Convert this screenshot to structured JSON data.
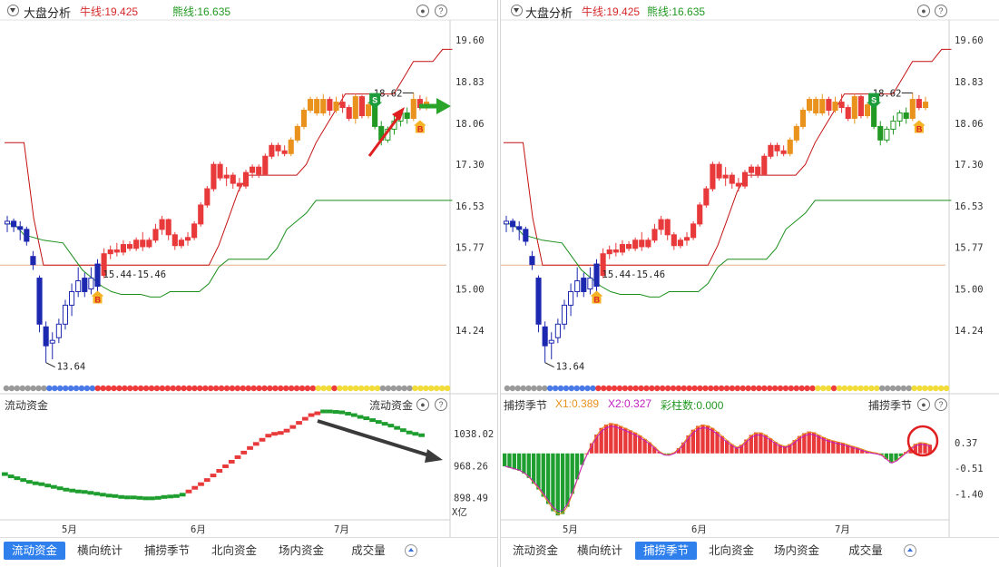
{
  "panels": [
    {
      "header": {
        "title": "大盘分析",
        "bull": "牛线:19.425",
        "bear": "熊线:16.635"
      },
      "sub_label": "流动资金",
      "sub_label_right": "流动资金",
      "tabs": [
        "流动资金",
        "横向统计",
        "捕捞季节",
        "北向资金",
        "场内资金",
        "成交量"
      ],
      "active_tab": 0
    },
    {
      "header": {
        "title": "大盘分析",
        "bull": "牛线:19.425",
        "bear": "熊线:16.635"
      },
      "sub_label": "捕捞季节",
      "sub_label_right": "捕捞季节",
      "indicator_values": {
        "x1": "X1:0.389",
        "x2": "X2:0.327",
        "bars": "彩柱数:0.000"
      },
      "tabs": [
        "流动资金",
        "横向统计",
        "捕捞季节",
        "北向资金",
        "场内资金",
        "成交量"
      ],
      "active_tab": 2
    }
  ],
  "chart_data": [
    {
      "type": "candlestick",
      "y_ticks": [
        "19.60",
        "18.83",
        "18.06",
        "17.30",
        "16.53",
        "15.77",
        "15.00",
        "14.24"
      ],
      "ylim": [
        13.4,
        19.9
      ],
      "x_ticks": [
        "5月",
        "6月",
        "7月"
      ],
      "annotations": {
        "low": "13.64",
        "high": "18.62",
        "band": "15.44-15.46"
      },
      "signals": [
        "B",
        "S",
        "B"
      ],
      "bull_line_last": 19.425,
      "bear_line_last": 16.635,
      "ohlc": [
        [
          16.2,
          16.35,
          16.05,
          16.25
        ],
        [
          16.25,
          16.3,
          16.05,
          16.15
        ],
        [
          16.15,
          16.25,
          15.9,
          16.1
        ],
        [
          16.1,
          16.15,
          15.8,
          15.88
        ],
        [
          15.6,
          15.7,
          15.35,
          15.45
        ],
        [
          15.2,
          15.25,
          14.2,
          14.35
        ],
        [
          14.3,
          14.4,
          13.64,
          13.95
        ],
        [
          14.0,
          14.2,
          13.7,
          14.05
        ],
        [
          14.1,
          14.45,
          14.0,
          14.35
        ],
        [
          14.35,
          14.8,
          14.25,
          14.7
        ],
        [
          14.7,
          15.1,
          14.5,
          14.95
        ],
        [
          14.95,
          15.4,
          14.85,
          15.15
        ],
        [
          15.2,
          15.3,
          14.85,
          14.95
        ],
        [
          15.0,
          15.4,
          14.9,
          15.2
        ],
        [
          15.46,
          15.55,
          14.9,
          15.05
        ],
        [
          15.25,
          15.75,
          15.2,
          15.65
        ],
        [
          15.65,
          15.8,
          15.55,
          15.72
        ],
        [
          15.72,
          15.85,
          15.6,
          15.68
        ],
        [
          15.68,
          15.9,
          15.62,
          15.82
        ],
        [
          15.82,
          15.88,
          15.7,
          15.75
        ],
        [
          15.75,
          15.95,
          15.7,
          15.9
        ],
        [
          15.9,
          16.05,
          15.7,
          15.78
        ],
        [
          15.78,
          15.95,
          15.75,
          15.9
        ],
        [
          15.9,
          16.2,
          15.85,
          16.1
        ],
        [
          16.1,
          16.35,
          16.0,
          16.28
        ],
        [
          16.28,
          16.3,
          15.9,
          16.0
        ],
        [
          16.0,
          16.05,
          15.72,
          15.8
        ],
        [
          15.8,
          15.95,
          15.75,
          15.9
        ],
        [
          15.9,
          16.05,
          15.8,
          15.95
        ],
        [
          15.95,
          16.25,
          15.9,
          16.2
        ],
        [
          16.2,
          16.6,
          16.15,
          16.55
        ],
        [
          16.55,
          16.9,
          16.5,
          16.85
        ],
        [
          16.85,
          17.35,
          16.8,
          17.3
        ],
        [
          17.3,
          17.35,
          17.0,
          17.05
        ],
        [
          17.05,
          17.25,
          16.9,
          17.1
        ],
        [
          17.1,
          17.15,
          16.85,
          16.95
        ],
        [
          16.95,
          17.05,
          16.8,
          16.9
        ],
        [
          16.9,
          17.2,
          16.85,
          17.15
        ],
        [
          17.15,
          17.3,
          17.05,
          17.25
        ],
        [
          17.25,
          17.3,
          17.05,
          17.12
        ],
        [
          17.12,
          17.5,
          17.1,
          17.45
        ],
        [
          17.45,
          17.7,
          17.4,
          17.65
        ],
        [
          17.65,
          17.7,
          17.45,
          17.55
        ],
        [
          17.55,
          17.65,
          17.45,
          17.5
        ],
        [
          17.5,
          17.8,
          17.45,
          17.75
        ],
        [
          17.75,
          18.05,
          17.7,
          18.0
        ],
        [
          18.0,
          18.35,
          17.95,
          18.3
        ],
        [
          18.3,
          18.55,
          18.25,
          18.5
        ],
        [
          18.5,
          18.55,
          18.2,
          18.25
        ],
        [
          18.25,
          18.6,
          18.2,
          18.5
        ],
        [
          18.5,
          18.55,
          18.2,
          18.3
        ],
        [
          18.3,
          18.55,
          18.25,
          18.45
        ],
        [
          18.45,
          18.6,
          18.25,
          18.35
        ],
        [
          18.35,
          18.4,
          18.1,
          18.15
        ],
        [
          18.15,
          18.6,
          18.05,
          18.55
        ],
        [
          18.55,
          18.58,
          18.15,
          18.2
        ],
        [
          18.2,
          18.45,
          18.15,
          18.4
        ],
        [
          18.4,
          18.45,
          17.95,
          18.0
        ],
        [
          18.0,
          18.1,
          17.65,
          17.75
        ],
        [
          17.75,
          18.0,
          17.7,
          17.95
        ],
        [
          17.95,
          18.2,
          17.85,
          18.1
        ],
        [
          18.1,
          18.3,
          18.0,
          18.25
        ],
        [
          18.25,
          18.35,
          18.05,
          18.15
        ],
        [
          18.15,
          18.62,
          18.1,
          18.5
        ],
        [
          18.5,
          18.58,
          18.3,
          18.35
        ],
        [
          18.35,
          18.55,
          18.3,
          18.45
        ]
      ],
      "bull_line": [
        [
          0,
          17.7
        ],
        [
          2,
          17.7
        ],
        [
          3,
          16.3
        ],
        [
          4,
          15.44
        ],
        [
          14,
          15.44
        ],
        [
          15,
          15.44
        ],
        [
          20,
          15.44
        ],
        [
          21,
          15.44
        ],
        [
          22,
          15.8
        ],
        [
          23,
          16.3
        ],
        [
          24,
          16.8
        ],
        [
          25,
          17.1
        ],
        [
          30,
          17.1
        ],
        [
          31,
          17.3
        ],
        [
          32,
          17.7
        ],
        [
          33,
          18.0
        ],
        [
          34,
          18.3
        ],
        [
          35,
          18.6
        ],
        [
          36,
          18.6
        ],
        [
          40,
          18.6
        ],
        [
          41,
          18.9
        ],
        [
          42,
          19.2
        ],
        [
          44,
          19.2
        ],
        [
          45,
          19.425
        ],
        [
          46,
          19.425
        ]
      ],
      "bear_line": [
        [
          0,
          16.2
        ],
        [
          1,
          16.2
        ],
        [
          2,
          16.0
        ],
        [
          3,
          15.95
        ],
        [
          4,
          15.9
        ],
        [
          6,
          15.85
        ],
        [
          7,
          15.6
        ],
        [
          8,
          15.35
        ],
        [
          10,
          15.05
        ],
        [
          11,
          14.95
        ],
        [
          12,
          14.9
        ],
        [
          14,
          14.9
        ],
        [
          15,
          14.85
        ],
        [
          16,
          14.85
        ],
        [
          17,
          14.95
        ],
        [
          20,
          14.95
        ],
        [
          21,
          15.1
        ],
        [
          22,
          15.4
        ],
        [
          23,
          15.55
        ],
        [
          27,
          15.55
        ],
        [
          28,
          15.75
        ],
        [
          29,
          16.1
        ],
        [
          31,
          16.4
        ],
        [
          32,
          16.635
        ],
        [
          46,
          16.635
        ]
      ],
      "candle_ratio": 0.6625
    },
    {
      "type": "step",
      "y_ticks": [
        "1038.02",
        "968.26",
        "898.49"
      ],
      "unit": "X亿",
      "ylim": [
        850,
        1090
      ],
      "x_ticks": [
        "5月",
        "6月",
        "7月"
      ],
      "values": [
        950,
        945,
        941,
        937,
        933,
        930,
        928,
        925,
        922,
        919,
        916,
        914,
        912,
        911,
        909,
        907,
        905,
        903,
        902,
        900,
        899,
        899,
        898,
        897,
        897,
        898,
        900,
        901,
        902,
        905,
        912,
        920,
        928,
        937,
        947,
        957,
        967,
        977,
        987,
        997,
        1007,
        1016,
        1025,
        1034,
        1038,
        1040,
        1045,
        1053,
        1062,
        1071,
        1079,
        1083,
        1087,
        1087,
        1086,
        1085,
        1082,
        1079,
        1075,
        1072,
        1068,
        1064,
        1060,
        1056,
        1051,
        1046,
        1041,
        1038,
        1035
      ]
    },
    {
      "type": "histogram",
      "y_ticks": [
        "0.37",
        "-0.51",
        "-1.40"
      ],
      "ylim": [
        -2.3,
        1.5
      ],
      "x_ticks": [
        "5月",
        "6月",
        "7月"
      ],
      "values": [
        -0.45,
        -0.5,
        -0.55,
        -0.6,
        -0.7,
        -0.85,
        -1.05,
        -1.25,
        -1.5,
        -1.75,
        -2.0,
        -2.15,
        -2.1,
        -1.85,
        -1.4,
        -0.9,
        -0.4,
        0.0,
        0.35,
        0.65,
        0.88,
        1.0,
        1.05,
        1.02,
        0.95,
        0.88,
        0.8,
        0.72,
        0.62,
        0.5,
        0.38,
        0.22,
        0.06,
        -0.03,
        -0.04,
        0.03,
        0.18,
        0.38,
        0.62,
        0.82,
        0.95,
        1.0,
        0.97,
        0.88,
        0.75,
        0.6,
        0.45,
        0.32,
        0.22,
        0.3,
        0.48,
        0.64,
        0.73,
        0.72,
        0.64,
        0.52,
        0.4,
        0.3,
        0.25,
        0.32,
        0.46,
        0.6,
        0.7,
        0.76,
        0.73,
        0.64,
        0.56,
        0.49,
        0.44,
        0.4,
        0.36,
        0.3,
        0.25,
        0.2,
        0.14,
        0.08,
        0.04,
        0.01,
        -0.05,
        -0.2,
        -0.33,
        -0.25,
        -0.1,
        0.05,
        0.2,
        0.33,
        0.38,
        0.36,
        0.3
      ]
    }
  ],
  "colors": {
    "up": "#e8393b",
    "down": "#229922",
    "blue": "#1c28b0",
    "orange": "#e9921d",
    "green": "#229922",
    "bull": "#c41212",
    "bear": "#1a8f1a"
  }
}
